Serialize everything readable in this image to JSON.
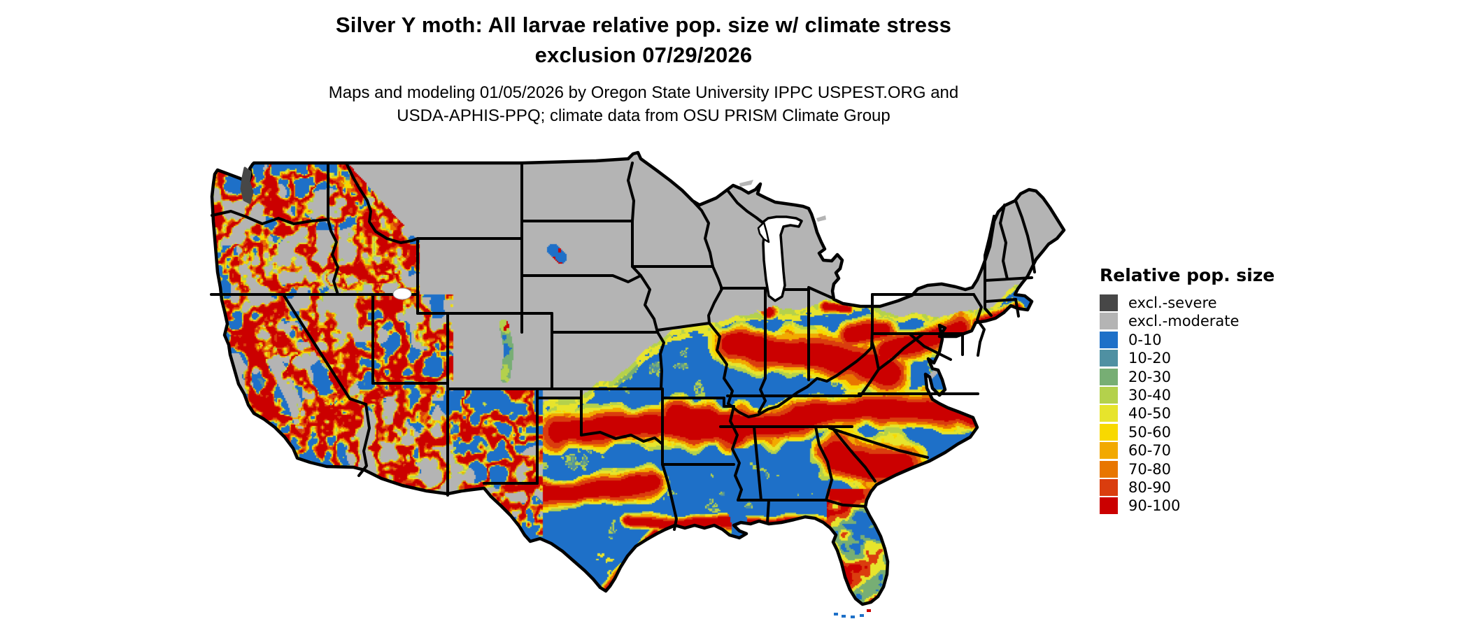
{
  "title": {
    "line1": "Silver Y moth: All larvae relative pop. size w/ climate stress",
    "line2": "exclusion 07/29/2026"
  },
  "subtitle": {
    "line1": "Maps and modeling 01/05/2026 by Oregon State University IPPC USPEST.ORG and",
    "line2": "USDA-APHIS-PPQ; climate data from OSU PRISM Climate Group"
  },
  "legend": {
    "title": "Relative pop. size",
    "items": [
      {
        "key": "excl-severe",
        "label": "excl.-severe",
        "color": "#474747"
      },
      {
        "key": "excl-moderate",
        "label": "excl.-moderate",
        "color": "#b4b4b4"
      },
      {
        "key": "0-10",
        "label": "0-10",
        "color": "#1e70c8"
      },
      {
        "key": "10-20",
        "label": "10-20",
        "color": "#4f90a2"
      },
      {
        "key": "20-30",
        "label": "20-30",
        "color": "#77ae74"
      },
      {
        "key": "30-40",
        "label": "30-40",
        "color": "#b4d14c"
      },
      {
        "key": "40-50",
        "label": "40-50",
        "color": "#e7e42c"
      },
      {
        "key": "50-60",
        "label": "50-60",
        "color": "#f8d900"
      },
      {
        "key": "60-70",
        "label": "60-70",
        "color": "#f2a900"
      },
      {
        "key": "70-80",
        "label": "70-80",
        "color": "#e87600"
      },
      {
        "key": "80-90",
        "label": "80-90",
        "color": "#da3d0e"
      },
      {
        "key": "90-100",
        "label": "90-100",
        "color": "#cb0000"
      }
    ]
  },
  "map": {
    "region": "Conterminous United States with state boundaries",
    "style": {
      "state_border_color": "#000000",
      "water_color": "#ffffff",
      "background_color": "#ffffff"
    }
  }
}
